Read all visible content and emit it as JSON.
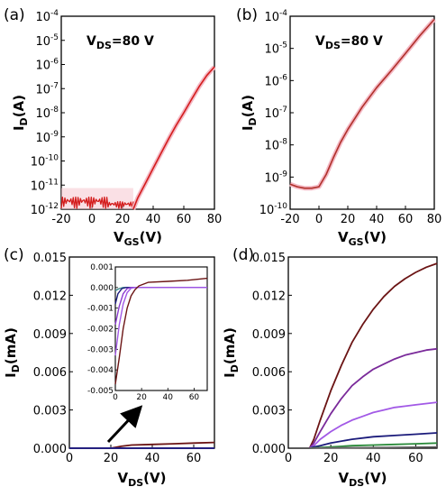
{
  "chart_data": [
    {
      "panel_label": "(a)",
      "type": "line",
      "annotation": "V",
      "annotation_sub": "DS",
      "annotation_tail": "=80 V",
      "xlabel": "V",
      "xlabel_sub": "GS",
      "xlabel_tail": "(V)",
      "ylabel": "I",
      "ylabel_sub": "D",
      "ylabel_tail": "(A)",
      "xlim": [
        -20,
        80
      ],
      "xticks": [
        -20,
        0,
        20,
        40,
        60,
        80
      ],
      "ylog": true,
      "ylim_exp": [
        -12,
        -4
      ],
      "yticks_exp": [
        -12,
        -11,
        -10,
        -9,
        -8,
        -7,
        -6,
        -5,
        -4
      ],
      "series": [
        {
          "color": "#d41c1c",
          "style": "noisy-floor",
          "noise_floor": 1e-12,
          "noise_xrange": [
            -20,
            27
          ],
          "x": [
            27,
            30,
            35,
            40,
            45,
            50,
            55,
            60,
            65,
            70,
            75,
            80
          ],
          "y": [
            1e-12,
            3e-12,
            1.2e-11,
            5e-11,
            2e-10,
            8e-10,
            3e-09,
            1e-08,
            3.5e-08,
            1.2e-07,
            3.5e-07,
            8e-07
          ]
        }
      ]
    },
    {
      "panel_label": "(b)",
      "type": "line",
      "annotation": "V",
      "annotation_sub": "DS",
      "annotation_tail": "=80 V",
      "xlabel": "V",
      "xlabel_sub": "GS",
      "xlabel_tail": "(V)",
      "ylabel": "I",
      "ylabel_sub": "D",
      "ylabel_tail": "(A)",
      "xlim": [
        -20,
        80
      ],
      "xticks": [
        -20,
        0,
        20,
        40,
        60,
        80
      ],
      "ylog": true,
      "ylim_exp": [
        -10,
        -4
      ],
      "yticks_exp": [
        -10,
        -9,
        -8,
        -7,
        -6,
        -5,
        -4
      ],
      "series": [
        {
          "color": "#b0302a",
          "x": [
            -20,
            -15,
            -10,
            -5,
            0,
            5,
            10,
            15,
            20,
            30,
            40,
            50,
            60,
            70,
            80
          ],
          "y": [
            6e-10,
            5e-10,
            4.5e-10,
            4.5e-10,
            5e-10,
            1.2e-09,
            4e-09,
            1.2e-08,
            3e-08,
            1.5e-07,
            6e-07,
            2e-06,
            7e-06,
            2.5e-05,
            8e-05
          ]
        }
      ]
    },
    {
      "panel_label": "(c)",
      "type": "line",
      "xlabel": "V",
      "xlabel_sub": "DS",
      "xlabel_tail": "(V)",
      "ylabel": "I",
      "ylabel_sub": "D",
      "ylabel_tail": "(mA)",
      "xlim": [
        0,
        70
      ],
      "xticks": [
        0,
        20,
        40,
        60
      ],
      "ylim": [
        0,
        0.015
      ],
      "yticks": [
        "0.000",
        "0.003",
        "0.006",
        "0.009",
        "0.012",
        "0.015"
      ],
      "series": [
        {
          "color": "#6b1414",
          "x": [
            0,
            20,
            25,
            30,
            40,
            50,
            60,
            70
          ],
          "y": [
            0,
            0,
            0.00015,
            0.00025,
            0.0003,
            0.00035,
            0.0004,
            0.00045
          ]
        },
        {
          "color": "#444444",
          "x": [
            0,
            70
          ],
          "y": [
            0,
            0
          ]
        },
        {
          "color": "#2a8a3a",
          "x": [
            0,
            70
          ],
          "y": [
            0,
            0
          ]
        },
        {
          "color": "#8a3bcf",
          "x": [
            0,
            70
          ],
          "y": [
            0,
            0
          ]
        },
        {
          "color": "#1a1a7a",
          "x": [
            0,
            70
          ],
          "y": [
            0,
            0
          ]
        }
      ],
      "inset": {
        "xlim": [
          0,
          70
        ],
        "xticks": [
          0,
          20,
          40,
          60
        ],
        "ylim": [
          -0.005,
          0.001
        ],
        "yticks": [
          "0.001",
          "0.000",
          "-0.001",
          "-0.002",
          "-0.003",
          "-0.004",
          "-0.005"
        ],
        "series": [
          {
            "color": "#3a8a8a",
            "x": [
              0,
              3,
              6,
              70
            ],
            "y": [
              -0.00015,
              -5e-05,
              0,
              0
            ]
          },
          {
            "color": "#1a1a7a",
            "x": [
              0,
              2,
              5,
              8,
              70
            ],
            "y": [
              -0.0008,
              -0.0003,
              -5e-05,
              0,
              0
            ]
          },
          {
            "color": "#8a3bcf",
            "x": [
              0,
              3,
              6,
              9,
              12,
              70
            ],
            "y": [
              -0.0018,
              -0.0009,
              -0.0003,
              -5e-05,
              0,
              0
            ]
          },
          {
            "color": "#a259e6",
            "x": [
              0,
              3,
              6,
              9,
              12,
              15,
              70
            ],
            "y": [
              -0.0033,
              -0.0018,
              -0.0008,
              -0.00025,
              -3e-05,
              0,
              0
            ]
          },
          {
            "color": "#6b1414",
            "x": [
              0,
              3,
              6,
              9,
              12,
              15,
              18,
              25,
              40,
              55,
              70
            ],
            "y": [
              -0.0047,
              -0.0034,
              -0.002,
              -0.001,
              -0.0004,
              -0.0001,
              8e-05,
              0.00025,
              0.0003,
              0.00035,
              0.00045
            ]
          }
        ]
      }
    },
    {
      "panel_label": "(d)",
      "type": "line",
      "xlabel": "V",
      "xlabel_sub": "DS",
      "xlabel_tail": "(V)",
      "ylabel": "I",
      "ylabel_sub": "D",
      "ylabel_tail": "(mA)",
      "xlim": [
        0,
        70
      ],
      "xticks": [
        0,
        20,
        40,
        60
      ],
      "ylim": [
        0,
        0.015
      ],
      "yticks": [
        "0.000",
        "0.003",
        "0.006",
        "0.009",
        "0.012",
        "0.015"
      ],
      "series": [
        {
          "color": "#6b1414",
          "x": [
            10,
            12,
            15,
            20,
            25,
            30,
            35,
            40,
            45,
            50,
            55,
            60,
            65,
            70
          ],
          "y": [
            0,
            0.0007,
            0.0022,
            0.0045,
            0.0065,
            0.0083,
            0.0097,
            0.0109,
            0.0119,
            0.0127,
            0.0133,
            0.0138,
            0.0142,
            0.0145
          ]
        },
        {
          "color": "#7a2a9a",
          "x": [
            10,
            12,
            15,
            20,
            25,
            30,
            35,
            40,
            45,
            50,
            55,
            60,
            65,
            70
          ],
          "y": [
            0,
            0.0004,
            0.0013,
            0.0027,
            0.0039,
            0.0049,
            0.0056,
            0.0062,
            0.0066,
            0.007,
            0.0073,
            0.0075,
            0.0077,
            0.0078
          ]
        },
        {
          "color": "#a259e6",
          "x": [
            10,
            12,
            15,
            20,
            25,
            30,
            35,
            40,
            45,
            50,
            55,
            60,
            65,
            70
          ],
          "y": [
            0,
            0.0002,
            0.0007,
            0.0013,
            0.0018,
            0.0022,
            0.0025,
            0.0028,
            0.003,
            0.0032,
            0.0033,
            0.0034,
            0.0035,
            0.0036
          ]
        },
        {
          "color": "#1a1a7a",
          "x": [
            10,
            12,
            15,
            20,
            30,
            40,
            50,
            60,
            70
          ],
          "y": [
            0,
            0.0001,
            0.0002,
            0.0004,
            0.0007,
            0.0009,
            0.001,
            0.0011,
            0.0012
          ]
        },
        {
          "color": "#2a8a3a",
          "x": [
            10,
            15,
            20,
            30,
            40,
            50,
            60,
            70
          ],
          "y": [
            0,
            5e-05,
            0.0001,
            0.0002,
            0.00025,
            0.0003,
            0.00035,
            0.0004
          ]
        },
        {
          "color": "#666666",
          "x": [
            10,
            20,
            40,
            70
          ],
          "y": [
            0,
            2e-05,
            5e-05,
            0.0001
          ]
        }
      ]
    }
  ]
}
